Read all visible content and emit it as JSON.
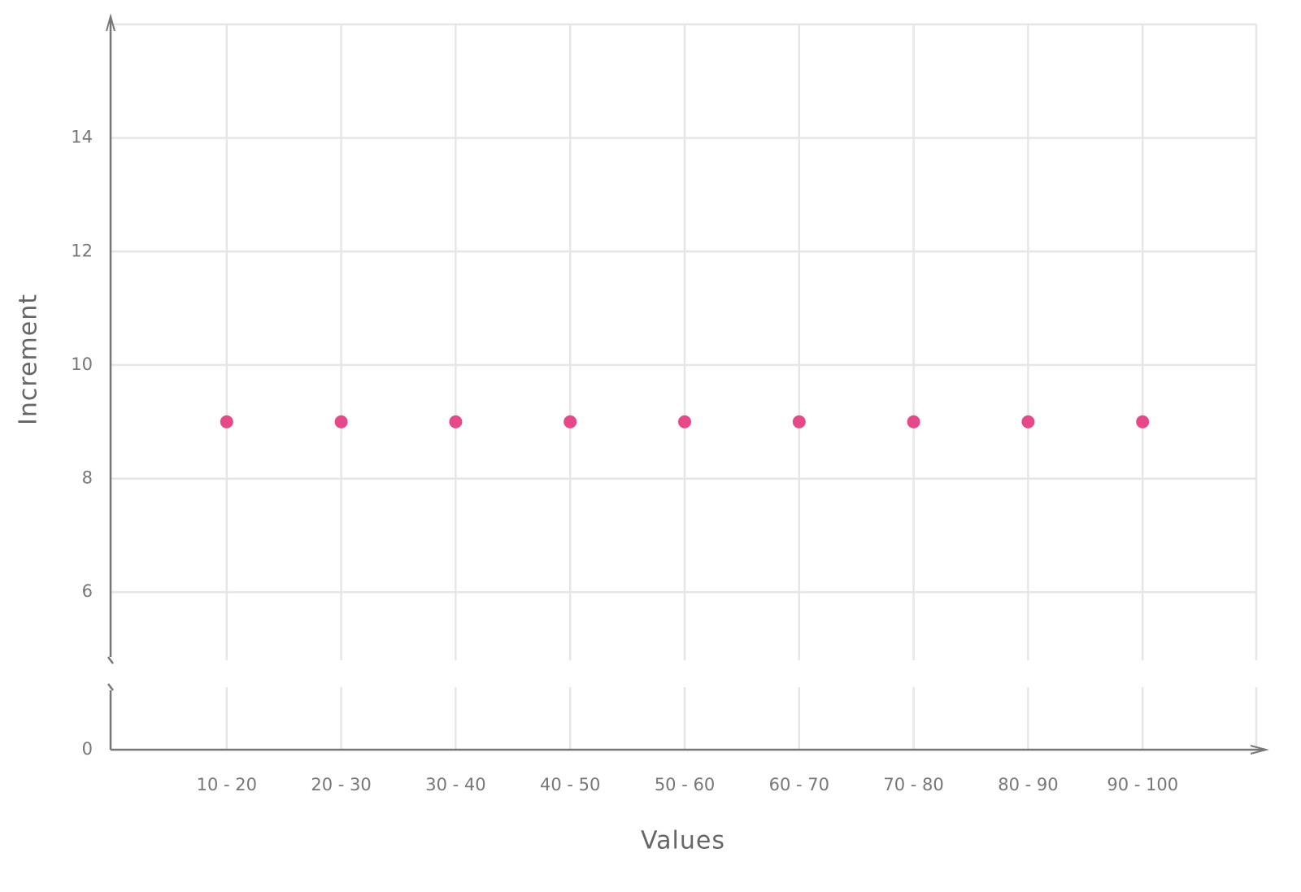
{
  "chart_data": {
    "type": "dot",
    "x_label": "Values",
    "y_label": "Increment",
    "categories": [
      "10 - 20",
      "20 - 30",
      "30 - 40",
      "40 - 50",
      "50 - 60",
      "60 - 70",
      "70 - 80",
      "80 - 90",
      "90 - 100"
    ],
    "values": [
      9,
      9,
      9,
      9,
      9,
      9,
      9,
      9,
      9
    ],
    "color": "#e8488a",
    "ylim": [
      0,
      16
    ],
    "axis_break": [
      1,
      4.8
    ],
    "yticks": [
      0,
      6,
      8,
      10,
      12,
      14
    ],
    "grid": true
  }
}
